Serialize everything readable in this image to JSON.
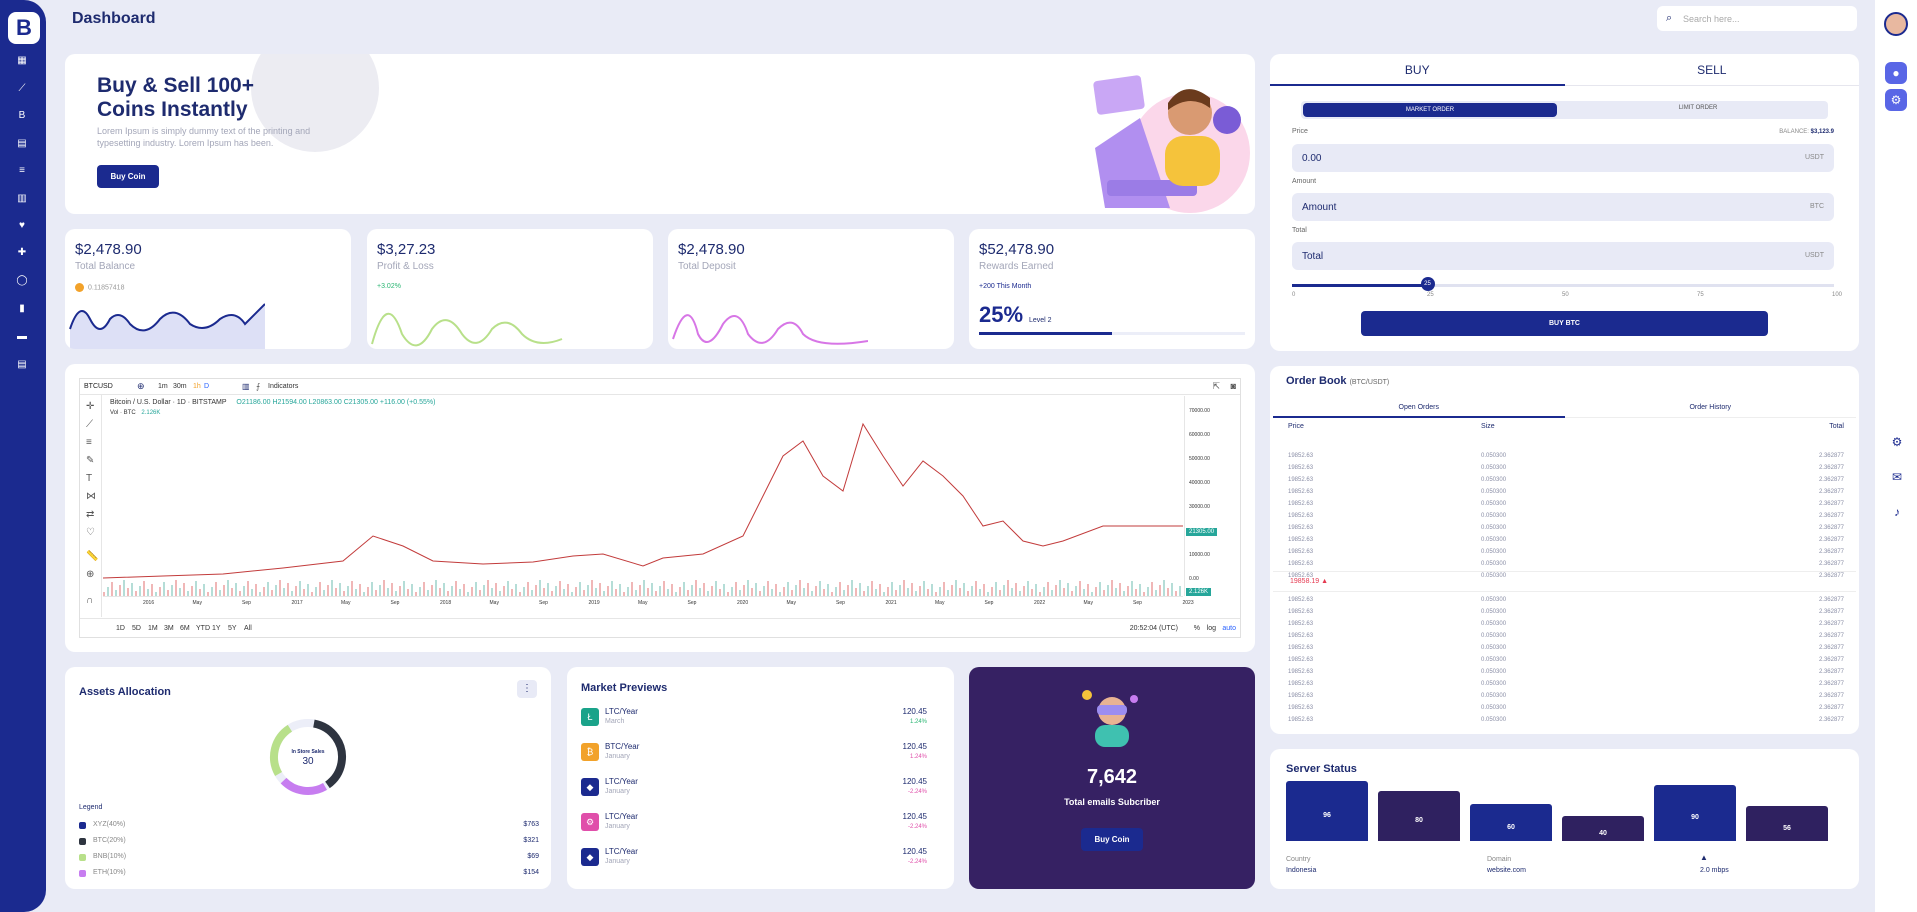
{
  "sidebar": {
    "logo": "B",
    "icons": [
      "dashboard-icon",
      "chart-line-icon",
      "bitcoin-icon",
      "document-icon",
      "list-icon",
      "table-icon",
      "heart-icon",
      "puzzle-icon",
      "circle-icon",
      "file-icon",
      "grid-icon",
      "report-icon"
    ]
  },
  "header": {
    "title": "Dashboard",
    "search_placeholder": "Search here..."
  },
  "hero": {
    "title_line1": "Buy & Sell 100+",
    "title_line2": "Coins Instantly",
    "desc": "Lorem Ipsum is simply dummy text of the printing and typesetting industry. Lorem Ipsum has been.",
    "button": "Buy Coin"
  },
  "stats": [
    {
      "value": "$2,478.90",
      "label": "Total Balance",
      "sub": "0.11857418",
      "sub_color": "#999999"
    },
    {
      "value": "$3,27.23",
      "label": "Profit & Loss",
      "sub": "+3.02%",
      "sub_color": "#2bb673"
    },
    {
      "value": "$2,478.90",
      "label": "Total Deposit",
      "sub": "",
      "sub_color": "#999999"
    },
    {
      "value": "$52,478.90",
      "label": "Rewards Earned",
      "sub": "+200 This Month",
      "sub_color": "#1b2a8f"
    }
  ],
  "rewards": {
    "percent": "25%",
    "level": "Level 2",
    "progress": 0.5
  },
  "trade": {
    "tab_buy": "BUY",
    "tab_sell": "SELL",
    "order_market": "MARKET ORDER",
    "order_limit": "LIMIT ORDER",
    "price_label": "Price",
    "balance_label": "BALANCE:",
    "balance_value": "$3,123.9",
    "price_value": "0.00",
    "price_unit": "USDT",
    "amount_label": "Amount",
    "amount_value": "Amount",
    "amount_unit": "BTC",
    "total_label": "Total",
    "total_value": "Total",
    "total_unit": "USDT",
    "slider_value": 25,
    "slider_ticks": [
      "0",
      "25",
      "50",
      "75",
      "100"
    ],
    "button": "BUY BTC"
  },
  "chart": {
    "symbol": "BTCUSD",
    "timeframes": [
      "1m",
      "30m",
      "1h",
      "D"
    ],
    "indicators": "Indicators",
    "pair": "Bitcoin / U.S. Dollar · 1D · BITSTAMP",
    "ohlc": "O21186.00 H21594.00 L20863.00 C21305.00 +116.00 (+0.55%)",
    "vol_label": "Vol · BTC",
    "vol_value": "2.126K",
    "y_ticks": [
      "70000.00",
      "60000.00",
      "50000.00",
      "40000.00",
      "30000.00",
      "20000.00",
      "10000.00",
      "0.00"
    ],
    "x_ticks": [
      "2016",
      "May",
      "Sep",
      "2017",
      "May",
      "Sep",
      "2018",
      "May",
      "Sep",
      "2019",
      "May",
      "Sep",
      "2020",
      "May",
      "Sep",
      "2021",
      "May",
      "Sep",
      "2022",
      "May",
      "Sep",
      "2023"
    ],
    "price_tag": "21305.00",
    "vol_tag": "2.126K",
    "ranges": [
      "1D",
      "5D",
      "1M",
      "3M",
      "6M",
      "YTD",
      "1Y",
      "5Y",
      "All"
    ],
    "time": "20:52:04 (UTC)",
    "scale_pct": "%",
    "scale_log": "log",
    "scale_auto": "auto"
  },
  "order_book": {
    "title": "Order Book",
    "pair": "(BTC/USDT)",
    "tab_open": "Open Orders",
    "tab_history": "Order History",
    "col_price": "Price",
    "col_size": "Size",
    "col_total": "Total",
    "mid_price": "19858.19",
    "price": "19852.63",
    "size": "0.050300",
    "total": "2.362877"
  },
  "assets": {
    "title": "Assets Allocation",
    "donut_label": "In Store Sales",
    "donut_value": "30",
    "legend_title": "Legend",
    "legend": [
      {
        "name": "XYZ(40%)",
        "amount": "$763",
        "color": "#1b2a8f"
      },
      {
        "name": "BTC(20%)",
        "amount": "$321",
        "color": "#2e3440"
      },
      {
        "name": "BNB(10%)",
        "amount": "$69",
        "color": "#b8e08a"
      },
      {
        "name": "ETH(10%)",
        "amount": "$154",
        "color": "#c77df0"
      }
    ]
  },
  "market": {
    "title": "Market Previews",
    "items": [
      {
        "name": "LTC/Year",
        "date": "March",
        "value": "120.45",
        "pct": "1.24%",
        "color": "#1aa38a",
        "pct_color": "#2bb673",
        "icon": "litecoin-icon",
        "glyph": "Ł"
      },
      {
        "name": "BTC/Year",
        "date": "January",
        "value": "120.45",
        "pct": "1.24%",
        "color": "#f2a22a",
        "pct_color": "#e04faa",
        "icon": "bitcoin-icon",
        "glyph": "₿"
      },
      {
        "name": "LTC/Year",
        "date": "January",
        "value": "120.45",
        "pct": "-2.24%",
        "color": "#1b2a8f",
        "pct_color": "#e04faa",
        "icon": "ethereum-icon",
        "glyph": "◆"
      },
      {
        "name": "LTC/Year",
        "date": "January",
        "value": "120.45",
        "pct": "-2.24%",
        "color": "#e04faa",
        "pct_color": "#e04faa",
        "icon": "network-icon",
        "glyph": "⚙"
      },
      {
        "name": "LTC/Year",
        "date": "January",
        "value": "120.45",
        "pct": "-2.24%",
        "color": "#1b2a8f",
        "pct_color": "#e04faa",
        "icon": "ethereum-icon",
        "glyph": "◆"
      }
    ]
  },
  "emails": {
    "count": "7,642",
    "label": "Total emails Subcriber",
    "button": "Buy Coin"
  },
  "server": {
    "title": "Server Status",
    "bars": [
      {
        "value": 96,
        "color": "#1b2a8f"
      },
      {
        "value": 80,
        "color": "#2f2160"
      },
      {
        "value": 60,
        "color": "#1b2a8f"
      },
      {
        "value": 40,
        "color": "#2f2160"
      },
      {
        "value": 90,
        "color": "#1b2a8f"
      },
      {
        "value": 56,
        "color": "#2f2160"
      }
    ],
    "country_label": "Country",
    "country": "Indonesia",
    "domain_label": "Domain",
    "domain": "website.com",
    "speed": "2.0 mbps"
  }
}
